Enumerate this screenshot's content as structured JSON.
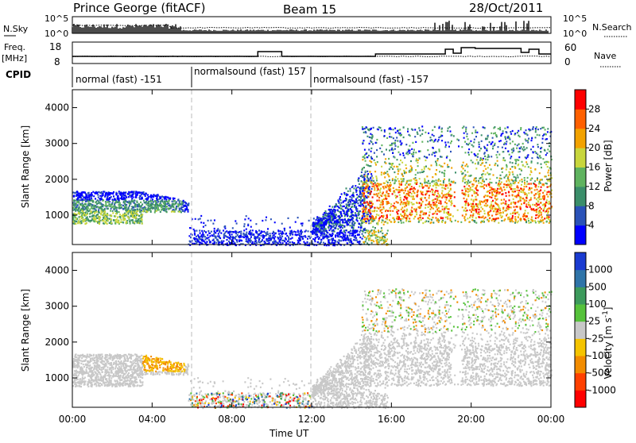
{
  "header": {
    "site": "Prince George (fitACF)",
    "beam": "Beam 15",
    "date": "28/Oct/2011"
  },
  "chart_data": [
    {
      "type": "line",
      "title": "",
      "left_label": "N.Sky",
      "right_label": "N.Search",
      "left_ticks": [
        "10^5",
        "10^0"
      ],
      "right_ticks": [
        "10^5",
        "10^0"
      ]
    },
    {
      "type": "line",
      "left_label_1": "Freq.",
      "left_label_2": "[MHz]",
      "right_label": "Nave",
      "left_ticks": [
        18,
        8
      ],
      "right_ticks": [
        60,
        0
      ],
      "freq_steps": [
        {
          "t": 0,
          "v": 11.5
        },
        {
          "t": 9.3,
          "v": 14.5
        },
        {
          "t": 10.5,
          "v": 11.5
        },
        {
          "t": 15.2,
          "v": 13.0
        },
        {
          "t": 18.7,
          "v": 16.0
        },
        {
          "t": 19.1,
          "v": 13.5
        },
        {
          "t": 19.5,
          "v": 17.0
        },
        {
          "t": 20.2,
          "v": 16.5
        },
        {
          "t": 22.5,
          "v": 14.0
        },
        {
          "t": 22.9,
          "v": 16.0
        },
        {
          "t": 23.4,
          "v": 13.0
        },
        {
          "t": 24,
          "v": 13.0
        }
      ]
    },
    {
      "type": "table",
      "label": "CPID",
      "segments": [
        {
          "start": 0,
          "text": "normal (fast) -151"
        },
        {
          "start": 6,
          "text": "normalsound (fast) 157"
        },
        {
          "start": 12,
          "text": "normalsound (fast) -157"
        }
      ]
    },
    {
      "type": "heatmap",
      "ylabel": "Slant Range [km]",
      "ylim": [
        180,
        4500
      ],
      "yticks": [
        1000,
        2000,
        3000,
        4000
      ],
      "xlim": [
        0,
        24
      ],
      "colorbar": {
        "label": "Power [dB]",
        "ticks": [
          "4",
          "8",
          "12",
          "16",
          "20",
          "24",
          "28"
        ],
        "colors": [
          "#0000ff",
          "#2a52b8",
          "#3b8e6a",
          "#5fb35f",
          "#c8d63c",
          "#f2a200",
          "#ff6000",
          "#ff0000"
        ]
      }
    },
    {
      "type": "heatmap",
      "ylabel": "Slant Range [km]",
      "xlabel": "Time UT",
      "ylim": [
        180,
        4500
      ],
      "yticks": [
        1000,
        2000,
        3000,
        4000
      ],
      "xlim": [
        0,
        24
      ],
      "xticks": [
        "00:00",
        "04:00",
        "08:00",
        "12:00",
        "16:00",
        "20:00",
        "00:00"
      ],
      "colorbar": {
        "label": "Velocity [m s",
        "label_sup": "-1",
        "label_end": "]",
        "ticks": [
          "1000",
          "500",
          "100",
          "25",
          "-25",
          "-100",
          "-500",
          "-1000"
        ],
        "colors": [
          "#1a3bd1",
          "#2f74a8",
          "#3c9a5c",
          "#56c23b",
          "#c8c8c8",
          "#f5c400",
          "#f28c00",
          "#ff4000",
          "#ff0000"
        ]
      }
    }
  ]
}
